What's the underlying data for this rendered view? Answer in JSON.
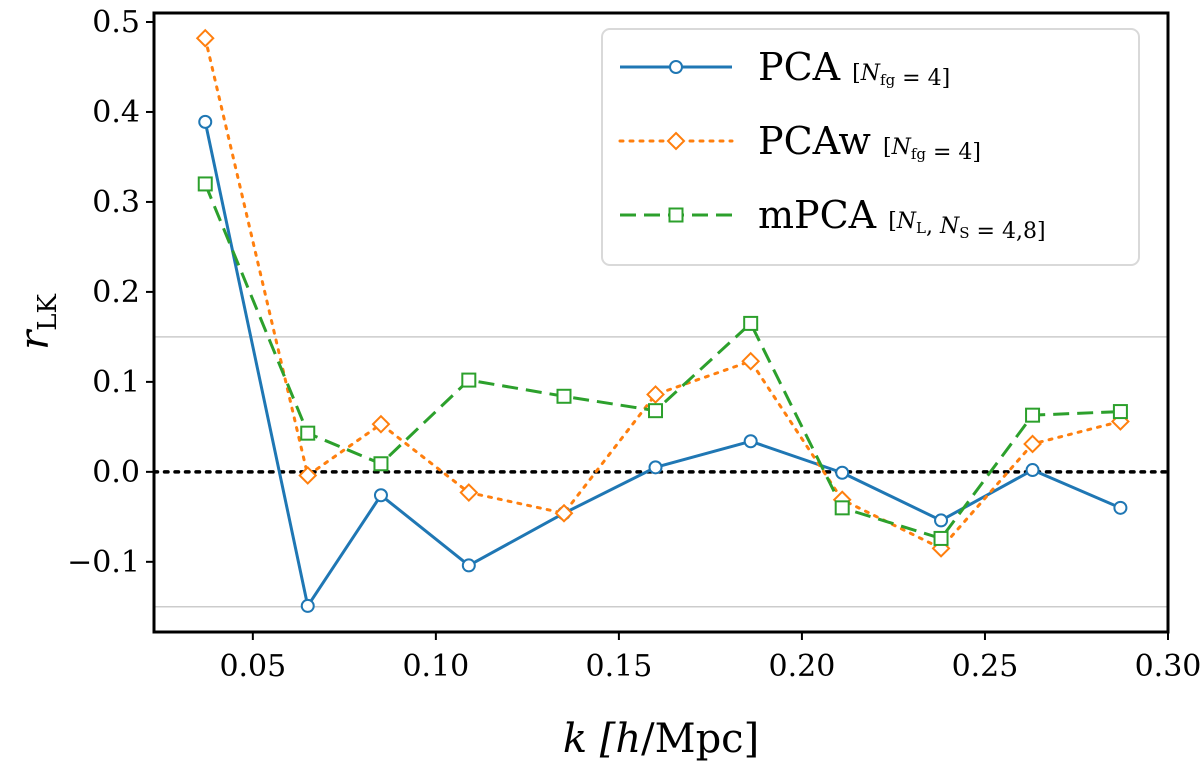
{
  "chart_data": {
    "type": "line",
    "title": "",
    "xlabel": "k [h/Mpc]",
    "ylabel": "r_LK",
    "xlim": [
      0.023,
      0.3
    ],
    "ylim": [
      -0.178,
      0.51
    ],
    "xticks": [
      0.05,
      0.1,
      0.15,
      0.2,
      0.25,
      0.3
    ],
    "xtick_labels": [
      "0.05",
      "0.10",
      "0.15",
      "0.20",
      "0.25",
      "0.30"
    ],
    "yticks": [
      -0.1,
      0.0,
      0.1,
      0.2,
      0.3,
      0.4,
      0.5
    ],
    "ytick_labels": [
      "−0.1",
      "0.0",
      "0.1",
      "0.2",
      "0.3",
      "0.4",
      "0.5"
    ],
    "reference_lines": {
      "zero": 0.0,
      "grey": [
        0.15,
        -0.15
      ]
    },
    "legend_position": "top-right",
    "series": [
      {
        "name": "PCA",
        "legend_label": "PCA",
        "legend_sub": "[N_fg = 4]",
        "color": "#1f77b4",
        "linestyle": "solid",
        "marker": "circle",
        "x": [
          0.037,
          0.065,
          0.085,
          0.109,
          0.135,
          0.16,
          0.186,
          0.211,
          0.238,
          0.263,
          0.287
        ],
        "y": [
          0.389,
          -0.149,
          -0.026,
          -0.104,
          -0.046,
          0.005,
          0.034,
          -0.001,
          -0.054,
          0.002,
          -0.04
        ]
      },
      {
        "name": "PCAw",
        "legend_label": "PCAw",
        "legend_sub": "[N_fg = 4]",
        "color": "#ff7f0e",
        "linestyle": "dotted",
        "marker": "diamond",
        "x": [
          0.037,
          0.065,
          0.085,
          0.109,
          0.135,
          0.16,
          0.186,
          0.211,
          0.238,
          0.263,
          0.287
        ],
        "y": [
          0.482,
          -0.004,
          0.053,
          -0.023,
          -0.046,
          0.086,
          0.123,
          -0.031,
          -0.085,
          0.031,
          0.056
        ]
      },
      {
        "name": "mPCA",
        "legend_label": "mPCA",
        "legend_sub": "[N_L, N_S = 4,8]",
        "color": "#2ca02c",
        "linestyle": "dashed",
        "marker": "square",
        "x": [
          0.037,
          0.065,
          0.085,
          0.109,
          0.135,
          0.16,
          0.186,
          0.211,
          0.238,
          0.263,
          0.287
        ],
        "y": [
          0.32,
          0.043,
          0.009,
          0.102,
          0.084,
          0.068,
          0.165,
          -0.04,
          -0.074,
          0.063,
          0.067
        ]
      }
    ]
  }
}
